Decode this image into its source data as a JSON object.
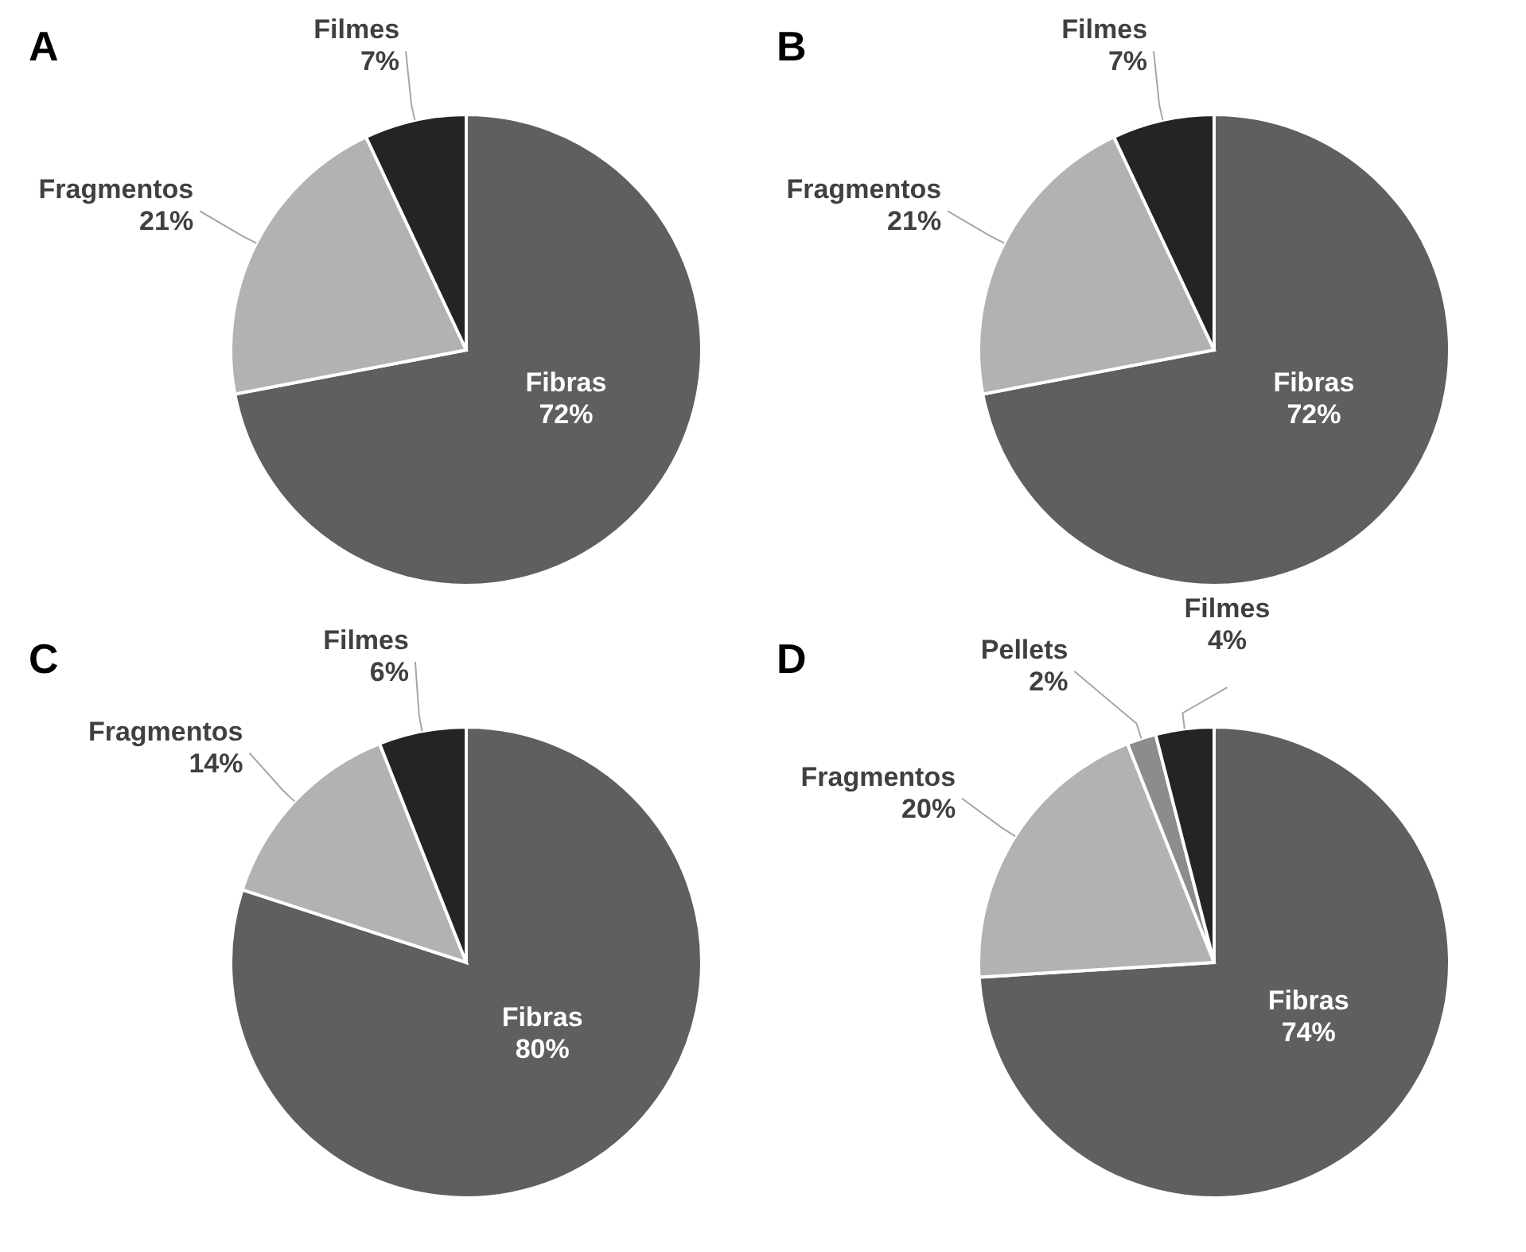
{
  "chart_data": [
    {
      "type": "pie",
      "title": "A",
      "categories": [
        "Fibras",
        "Fragmentos",
        "Filmes"
      ],
      "values": [
        72,
        21,
        7
      ],
      "value_labels": [
        "72%",
        "21%",
        "7%"
      ],
      "colors": [
        "#5f5f5f",
        "#b2b2b2",
        "#242424"
      ]
    },
    {
      "type": "pie",
      "title": "B",
      "categories": [
        "Fibras",
        "Fragmentos",
        "Filmes"
      ],
      "values": [
        72,
        21,
        7
      ],
      "value_labels": [
        "72%",
        "21%",
        "7%"
      ],
      "colors": [
        "#5f5f5f",
        "#b2b2b2",
        "#242424"
      ]
    },
    {
      "type": "pie",
      "title": "C",
      "categories": [
        "Fibras",
        "Fragmentos",
        "Filmes"
      ],
      "values": [
        80,
        14,
        6
      ],
      "value_labels": [
        "80%",
        "14%",
        "6%"
      ],
      "colors": [
        "#5f5f5f",
        "#b2b2b2",
        "#242424"
      ]
    },
    {
      "type": "pie",
      "title": "D",
      "categories": [
        "Fibras",
        "Fragmentos",
        "Pellets",
        "Filmes"
      ],
      "values": [
        74,
        20,
        2,
        4
      ],
      "value_labels": [
        "74%",
        "20%",
        "2%",
        "4%"
      ],
      "colors": [
        "#5f5f5f",
        "#b2b2b2",
        "#8c8c8c",
        "#242424"
      ]
    }
  ]
}
